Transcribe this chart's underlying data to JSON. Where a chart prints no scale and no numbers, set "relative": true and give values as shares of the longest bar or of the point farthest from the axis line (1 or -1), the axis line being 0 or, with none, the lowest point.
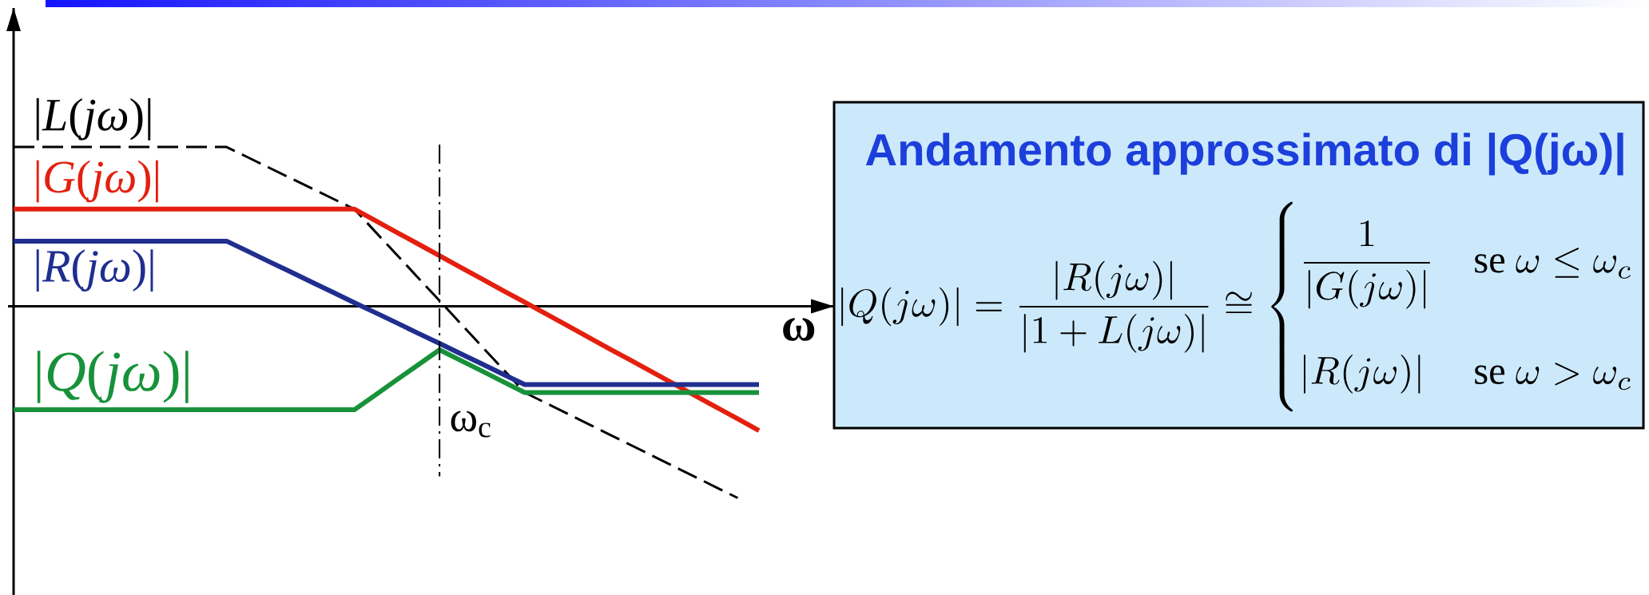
{
  "chart_data": {
    "type": "line",
    "relative": true,
    "xlabel": "ω",
    "categories": [
      null,
      null,
      null,
      null,
      null,
      null,
      null,
      null,
      null,
      null,
      null,
      null,
      null,
      null,
      null,
      null,
      null,
      null,
      null,
      null,
      null,
      null,
      null,
      null,
      null,
      null,
      null,
      null,
      null,
      null,
      null,
      null,
      null,
      null,
      null,
      null
    ],
    "series": [
      {
        "name": "|*L*(*jω*)|",
        "color": "#000000",
        "line_style": "dashed",
        "values": [
          0.831,
          0.831,
          0.831,
          0.831,
          0.831,
          0.831,
          0.831,
          0.831,
          0.831,
          0.831,
          0.831,
          0.777,
          0.723,
          0.669,
          0.615,
          0.561,
          0.507,
          0.387,
          0.268,
          0.148,
          0.029,
          -0.091,
          -0.211,
          -0.33,
          -0.45,
          -0.505,
          -0.56,
          -0.615,
          -0.67,
          -0.725,
          -0.78,
          -0.835,
          -0.89,
          -0.945,
          -1,
          null
        ]
      },
      {
        "name": "|*G*(*jω*)|",
        "color": "#e3200f",
        "values": [
          0.507,
          0.507,
          0.507,
          0.507,
          0.507,
          0.507,
          0.507,
          0.507,
          0.507,
          0.507,
          0.507,
          0.507,
          0.507,
          0.507,
          0.507,
          0.507,
          0.507,
          0.446,
          0.385,
          0.325,
          0.264,
          0.203,
          0.142,
          0.081,
          0.021,
          -0.04,
          -0.101,
          -0.162,
          -0.223,
          -0.283,
          -0.344,
          -0.405,
          -0.466,
          -0.527,
          -0.587,
          -0.648
        ]
      },
      {
        "name": "|*R*(*jω*)|",
        "color": "#1f2e8f",
        "values": [
          0.34,
          0.34,
          0.34,
          0.34,
          0.34,
          0.34,
          0.34,
          0.34,
          0.34,
          0.34,
          0.34,
          0.287,
          0.233,
          0.18,
          0.126,
          0.073,
          0.019,
          -0.034,
          -0.087,
          -0.141,
          -0.194,
          -0.248,
          -0.301,
          -0.355,
          -0.408,
          -0.408,
          -0.408,
          -0.408,
          -0.408,
          -0.408,
          -0.408,
          -0.408,
          -0.408,
          -0.408,
          -0.408,
          -0.408
        ]
      },
      {
        "name": "|*Q*(*jω*)|",
        "color": "#18923a",
        "values": [
          -0.54,
          -0.54,
          -0.54,
          -0.54,
          -0.54,
          -0.54,
          -0.54,
          -0.54,
          -0.54,
          -0.54,
          -0.54,
          -0.54,
          -0.54,
          -0.54,
          -0.54,
          -0.54,
          -0.54,
          -0.462,
          -0.383,
          -0.305,
          -0.227,
          -0.283,
          -0.338,
          -0.394,
          -0.45,
          -0.45,
          -0.45,
          -0.45,
          -0.45,
          -0.45,
          -0.45,
          -0.45,
          -0.45,
          -0.45,
          -0.45,
          -0.45
        ]
      }
    ],
    "annotations": [
      "Andamento approssimato di |Q(jω)|",
      "|Q(j\\omega)| = \\frac{|R(j\\omega)|}{|1+L(j\\omega)|} \\cong \\begin{cases} \\dfrac{1}{|G(j\\omega)|} & \\text{se } \\omega \\le \\omega_c \\\\ |R(j\\omega)| & \\text{se } \\omega > \\omega_c \\end{cases}",
      "ω$_{c}$"
    ]
  }
}
